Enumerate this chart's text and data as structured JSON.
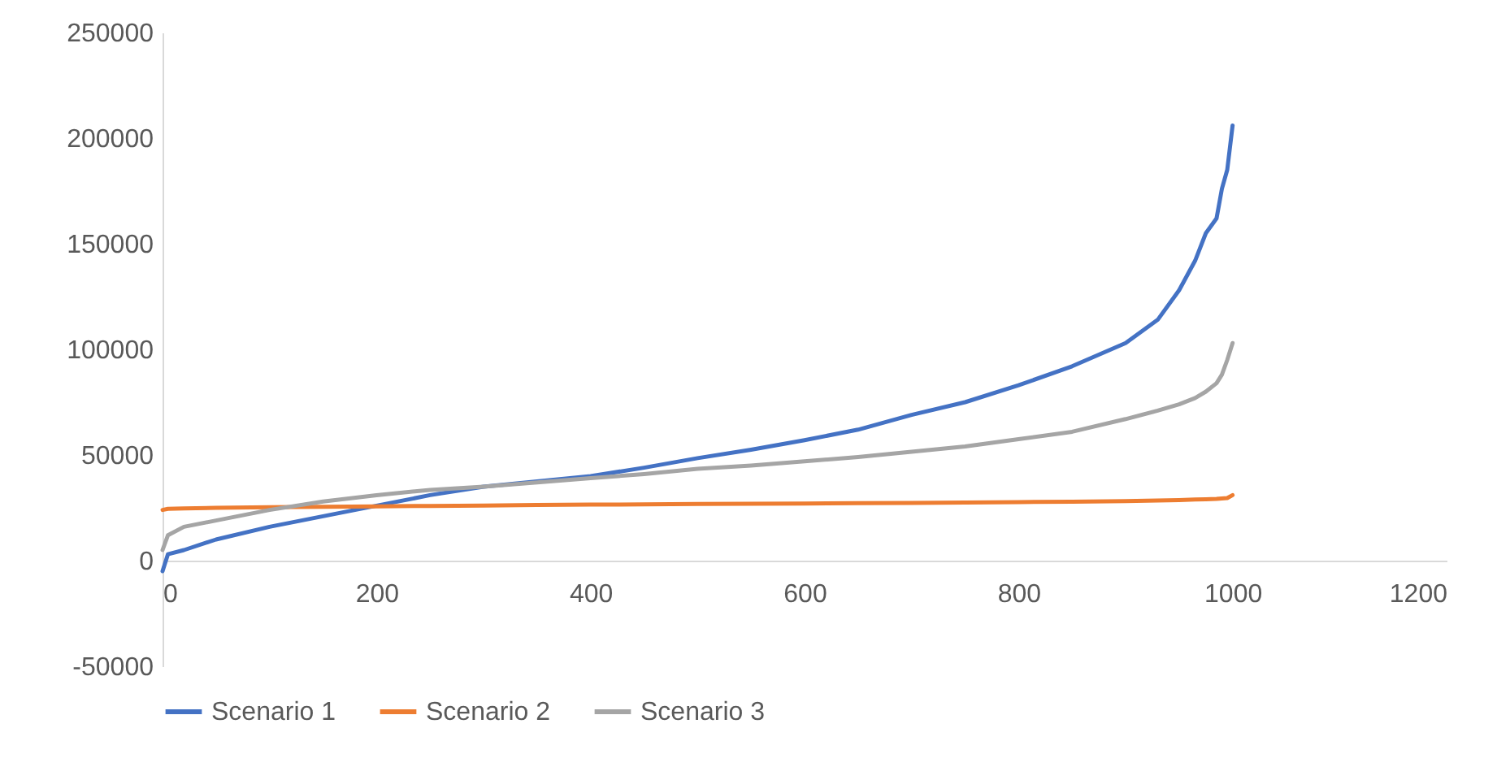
{
  "chart_data": {
    "type": "line",
    "xlim": [
      0,
      1200
    ],
    "xticks": [
      0,
      200,
      400,
      600,
      800,
      1000,
      1200
    ],
    "ylim": [
      -50000,
      250000
    ],
    "yticks": [
      -50000,
      0,
      50000,
      100000,
      150000,
      200000,
      250000
    ],
    "grid": false,
    "legend": "bottom",
    "marker": "none",
    "line_style": "solid",
    "x": [
      0,
      5,
      20,
      50,
      100,
      150,
      200,
      250,
      300,
      350,
      400,
      450,
      500,
      550,
      600,
      650,
      700,
      750,
      800,
      850,
      900,
      930,
      950,
      965,
      975,
      985,
      990,
      995,
      1000
    ],
    "series": [
      {
        "name": "Scenario 1",
        "color": "#4472c4",
        "values": [
          -5000,
          3000,
          5000,
          10000,
          16000,
          21000,
          26000,
          31000,
          35000,
          37500,
          40000,
          44000,
          48500,
          52500,
          57000,
          62000,
          69000,
          75000,
          83000,
          92000,
          103000,
          114000,
          128000,
          142000,
          155000,
          162000,
          176000,
          185000,
          206000
        ]
      },
      {
        "name": "Scenario 2",
        "color": "#ed7d31",
        "values": [
          24000,
          24500,
          24700,
          25000,
          25300,
          25500,
          25700,
          25900,
          26100,
          26300,
          26500,
          26600,
          26800,
          26900,
          27000,
          27200,
          27300,
          27500,
          27700,
          27900,
          28200,
          28500,
          28700,
          28900,
          29000,
          29200,
          29400,
          29600,
          31000
        ]
      },
      {
        "name": "Scenario 3",
        "color": "#a5a5a5",
        "values": [
          5000,
          12000,
          16000,
          19000,
          24000,
          28000,
          31000,
          33500,
          35000,
          37000,
          39000,
          41000,
          43500,
          45000,
          47000,
          49000,
          51500,
          54000,
          57500,
          61000,
          67000,
          71000,
          74000,
          77000,
          80000,
          84000,
          88000,
          95000,
          103000
        ]
      }
    ]
  }
}
